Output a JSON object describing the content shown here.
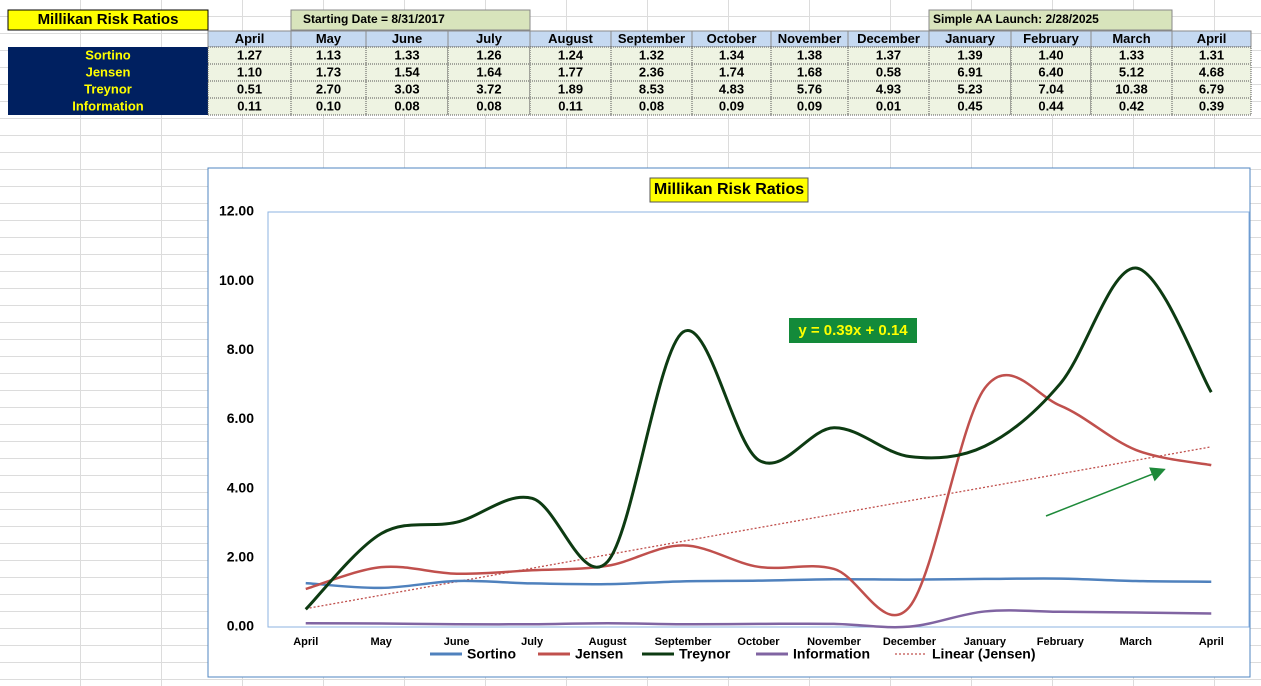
{
  "table": {
    "title": "Millikan Risk Ratios",
    "start_note": "Starting Date = 8/31/2017",
    "launch_note": "Simple AA Launch: 2/28/2025",
    "rows": [
      [
        "1.27",
        "1.13",
        "1.33",
        "1.26",
        "1.24",
        "1.32",
        "1.34",
        "1.38",
        "1.37",
        "1.39",
        "1.40",
        "1.33",
        "1.31"
      ],
      [
        "1.10",
        "1.73",
        "1.54",
        "1.64",
        "1.77",
        "2.36",
        "1.74",
        "1.68",
        "0.58",
        "6.91",
        "6.40",
        "5.12",
        "4.68"
      ],
      [
        "0.51",
        "2.70",
        "3.03",
        "3.72",
        "1.89",
        "8.53",
        "4.83",
        "5.76",
        "4.93",
        "5.23",
        "7.04",
        "10.38",
        "6.79"
      ],
      [
        "0.11",
        "0.10",
        "0.08",
        "0.08",
        "0.11",
        "0.08",
        "0.09",
        "0.09",
        "0.01",
        "0.45",
        "0.44",
        "0.42",
        "0.39"
      ]
    ]
  },
  "chart_data": {
    "type": "line",
    "title": "Millikan Risk Ratios",
    "smooth": true,
    "categories": [
      "April",
      "May",
      "June",
      "July",
      "August",
      "September",
      "October",
      "November",
      "December",
      "January",
      "February",
      "March",
      "April"
    ],
    "series": [
      {
        "name": "Sortino",
        "color": "#4f81bd",
        "values": [
          1.27,
          1.13,
          1.33,
          1.26,
          1.24,
          1.32,
          1.34,
          1.38,
          1.37,
          1.39,
          1.4,
          1.33,
          1.31
        ]
      },
      {
        "name": "Jensen",
        "color": "#c0504d",
        "values": [
          1.1,
          1.73,
          1.54,
          1.64,
          1.77,
          2.36,
          1.74,
          1.68,
          0.58,
          6.91,
          6.4,
          5.12,
          4.68
        ]
      },
      {
        "name": "Treynor",
        "color": "#0d3b12",
        "values": [
          0.51,
          2.7,
          3.03,
          3.72,
          1.89,
          8.53,
          4.83,
          5.76,
          4.93,
          5.23,
          7.04,
          10.38,
          6.79
        ]
      },
      {
        "name": "Information",
        "color": "#8064a2",
        "values": [
          0.11,
          0.1,
          0.08,
          0.08,
          0.11,
          0.08,
          0.09,
          0.09,
          0.01,
          0.45,
          0.44,
          0.42,
          0.39
        ]
      }
    ],
    "trendline": {
      "name": "Linear (Jensen)",
      "color": "#c0504d",
      "slope": 0.39,
      "intercept": 0.14,
      "label": "y = 0.39x + 0.14"
    },
    "ylim": [
      0,
      12
    ],
    "yticks": [
      {
        "value": 0,
        "label": "0.00"
      },
      {
        "value": 2,
        "label": "2.00"
      },
      {
        "value": 4,
        "label": "4.00"
      },
      {
        "value": 6,
        "label": "6.00"
      },
      {
        "value": 8,
        "label": "8.00"
      },
      {
        "value": 10,
        "label": "10.00"
      },
      {
        "value": 12,
        "label": "12.00"
      }
    ],
    "grid": false
  }
}
